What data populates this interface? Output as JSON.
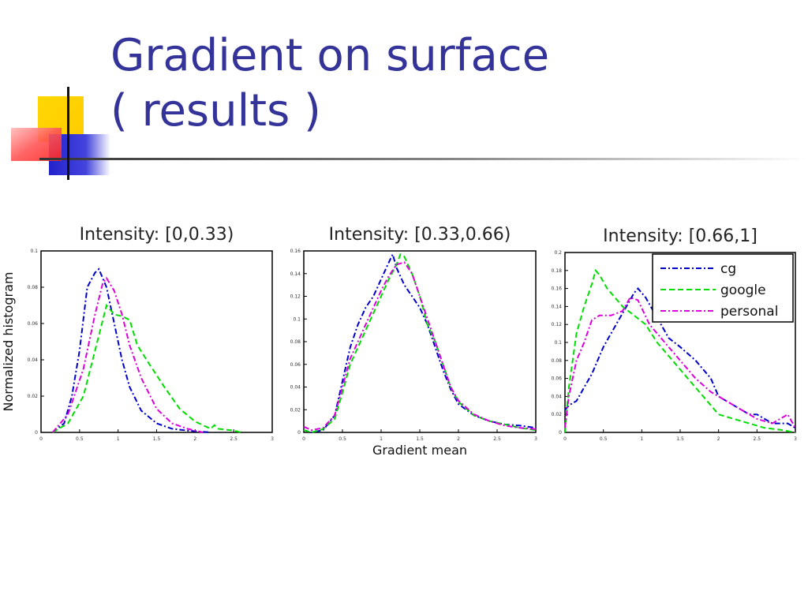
{
  "slide": {
    "title_line1": "Gradient on surface",
    "title_line2": "( results )"
  },
  "colors": {
    "title": "#333399",
    "accent_yellow": "#ffcc00",
    "accent_red": "#ff3333",
    "accent_blue": "#3333cc",
    "cg": "#0000cc",
    "google": "#00dd00",
    "personal": "#dd00dd"
  },
  "chart_data": [
    {
      "type": "line",
      "title": "Intensity: [0,0.33)",
      "ylabel": "Normalized histogram",
      "xlabel": "",
      "xlim": [
        0,
        3
      ],
      "xticks": [
        "0",
        "0.5",
        "1",
        "1.5",
        "2",
        "2.5",
        "3"
      ],
      "yticks": [
        "0",
        "0.02",
        "0.04",
        "0.06",
        "0.08",
        "0.1"
      ],
      "ylim": [
        0,
        0.1
      ],
      "grid": false,
      "series": [
        {
          "name": "cg",
          "style": "dashdot",
          "x": [
            0.15,
            0.3,
            0.4,
            0.5,
            0.6,
            0.7,
            0.75,
            0.85,
            0.95,
            1.05,
            1.15,
            1.3,
            1.5,
            1.7,
            1.9,
            2.2
          ],
          "values": [
            0,
            0.005,
            0.02,
            0.045,
            0.08,
            0.088,
            0.09,
            0.08,
            0.06,
            0.04,
            0.025,
            0.012,
            0.005,
            0.002,
            0.001,
            0
          ]
        },
        {
          "name": "google",
          "style": "dashed",
          "x": [
            0.15,
            0.35,
            0.55,
            0.7,
            0.85,
            0.95,
            1.05,
            1.15,
            1.25,
            1.4,
            1.6,
            1.8,
            2.0,
            2.2,
            2.25,
            2.3,
            2.5,
            2.6
          ],
          "values": [
            0,
            0.005,
            0.02,
            0.045,
            0.07,
            0.065,
            0.064,
            0.062,
            0.048,
            0.038,
            0.025,
            0.013,
            0.006,
            0.002,
            0.004,
            0.002,
            0.001,
            0
          ]
        },
        {
          "name": "personal",
          "style": "dashdot",
          "x": [
            0.15,
            0.35,
            0.55,
            0.7,
            0.8,
            0.85,
            0.95,
            1.05,
            1.15,
            1.3,
            1.5,
            1.7,
            1.9,
            2.1
          ],
          "values": [
            0,
            0.01,
            0.035,
            0.065,
            0.082,
            0.085,
            0.078,
            0.065,
            0.048,
            0.03,
            0.013,
            0.005,
            0.002,
            0
          ]
        }
      ]
    },
    {
      "type": "line",
      "title": "Intensity: [0.33,0.66)",
      "xlabel": "Gradient mean",
      "ylabel": "",
      "xlim": [
        0,
        3
      ],
      "xticks": [
        "0",
        "0.5",
        "1",
        "1.5",
        "2",
        "2.5",
        "3"
      ],
      "yticks": [
        "0",
        "0.02",
        "0.04",
        "0.06",
        "0.08",
        "0.1",
        "0.12",
        "0.14",
        "0.16"
      ],
      "ylim": [
        0,
        0.16
      ],
      "grid": false,
      "series": [
        {
          "name": "cg",
          "style": "dashdot",
          "x": [
            0,
            0.1,
            0.25,
            0.4,
            0.5,
            0.6,
            0.7,
            0.8,
            0.9,
            1.0,
            1.1,
            1.15,
            1.2,
            1.3,
            1.4,
            1.5,
            1.6,
            1.7,
            1.8,
            1.9,
            2.0,
            2.2,
            2.4,
            2.6,
            2.8,
            3.0
          ],
          "values": [
            0.002,
            0,
            0.002,
            0.015,
            0.045,
            0.075,
            0.095,
            0.11,
            0.12,
            0.135,
            0.15,
            0.157,
            0.145,
            0.13,
            0.12,
            0.11,
            0.095,
            0.075,
            0.055,
            0.038,
            0.025,
            0.015,
            0.01,
            0.007,
            0.006,
            0.004
          ]
        },
        {
          "name": "google",
          "style": "dashed",
          "x": [
            0,
            0.1,
            0.25,
            0.4,
            0.5,
            0.6,
            0.7,
            0.8,
            0.9,
            1.0,
            1.1,
            1.2,
            1.25,
            1.3,
            1.4,
            1.5,
            1.6,
            1.7,
            1.8,
            1.9,
            2.0,
            2.2,
            2.4,
            2.6,
            2.8,
            3.0
          ],
          "values": [
            0.002,
            0,
            0.003,
            0.012,
            0.035,
            0.06,
            0.075,
            0.09,
            0.105,
            0.12,
            0.135,
            0.148,
            0.157,
            0.155,
            0.14,
            0.12,
            0.095,
            0.08,
            0.06,
            0.04,
            0.027,
            0.015,
            0.01,
            0.007,
            0.004,
            0.002
          ]
        },
        {
          "name": "personal",
          "style": "dashdot",
          "x": [
            0,
            0.1,
            0.25,
            0.4,
            0.5,
            0.6,
            0.7,
            0.8,
            0.9,
            1.0,
            1.1,
            1.2,
            1.3,
            1.4,
            1.5,
            1.6,
            1.7,
            1.8,
            1.9,
            2.0,
            2.2,
            2.4,
            2.6,
            2.8,
            3.0
          ],
          "values": [
            0.005,
            0.002,
            0.004,
            0.015,
            0.04,
            0.065,
            0.08,
            0.095,
            0.11,
            0.125,
            0.138,
            0.148,
            0.15,
            0.14,
            0.12,
            0.1,
            0.08,
            0.06,
            0.04,
            0.028,
            0.016,
            0.01,
            0.006,
            0.004,
            0.003
          ]
        }
      ]
    },
    {
      "type": "line",
      "title": "Intensity: [0.66,1]",
      "xlabel": "",
      "ylabel": "",
      "xlim": [
        0,
        3
      ],
      "xticks": [
        "0",
        "0.5",
        "1",
        "1.5",
        "2",
        "2.5",
        "3"
      ],
      "yticks": [
        "0",
        "0.02",
        "0.04",
        "0.06",
        "0.08",
        "0.1",
        "0.12",
        "0.14",
        "0.16",
        "0.18",
        "0.2"
      ],
      "ylim": [
        0,
        0.2
      ],
      "grid": false,
      "legend": {
        "placement": "top-right",
        "entries": [
          "cg",
          "google",
          "personal"
        ]
      },
      "series": [
        {
          "name": "cg",
          "style": "dashdot",
          "x": [
            0,
            0.05,
            0.15,
            0.25,
            0.35,
            0.5,
            0.6,
            0.7,
            0.8,
            0.9,
            0.95,
            1.05,
            1.15,
            1.25,
            1.35,
            1.5,
            1.7,
            1.9,
            2.0,
            2.2,
            2.4,
            2.5,
            2.7,
            2.9,
            3.0
          ],
          "values": [
            0.025,
            0.03,
            0.035,
            0.05,
            0.065,
            0.095,
            0.11,
            0.125,
            0.14,
            0.155,
            0.16,
            0.15,
            0.135,
            0.12,
            0.105,
            0.095,
            0.08,
            0.06,
            0.04,
            0.03,
            0.02,
            0.02,
            0.01,
            0.01,
            0.005
          ]
        },
        {
          "name": "google",
          "style": "dashed",
          "x": [
            0,
            0.05,
            0.15,
            0.25,
            0.35,
            0.4,
            0.45,
            0.55,
            0.65,
            0.75,
            0.9,
            1.05,
            1.2,
            1.4,
            1.6,
            1.8,
            2.0,
            2.2,
            2.4,
            2.6,
            2.8,
            3.0
          ],
          "values": [
            0,
            0.05,
            0.11,
            0.14,
            0.165,
            0.18,
            0.175,
            0.16,
            0.15,
            0.14,
            0.13,
            0.12,
            0.1,
            0.08,
            0.06,
            0.04,
            0.02,
            0.015,
            0.01,
            0.005,
            0.003,
            0
          ]
        },
        {
          "name": "personal",
          "style": "dashdot",
          "x": [
            0,
            0.05,
            0.15,
            0.25,
            0.35,
            0.45,
            0.6,
            0.75,
            0.85,
            0.95,
            1.1,
            1.3,
            1.5,
            1.7,
            1.9,
            2.1,
            2.3,
            2.5,
            2.7,
            2.9,
            3.0
          ],
          "values": [
            0.005,
            0.04,
            0.08,
            0.1,
            0.125,
            0.13,
            0.13,
            0.135,
            0.15,
            0.147,
            0.12,
            0.1,
            0.08,
            0.06,
            0.045,
            0.035,
            0.025,
            0.015,
            0.01,
            0.02,
            0.005
          ]
        }
      ]
    }
  ]
}
